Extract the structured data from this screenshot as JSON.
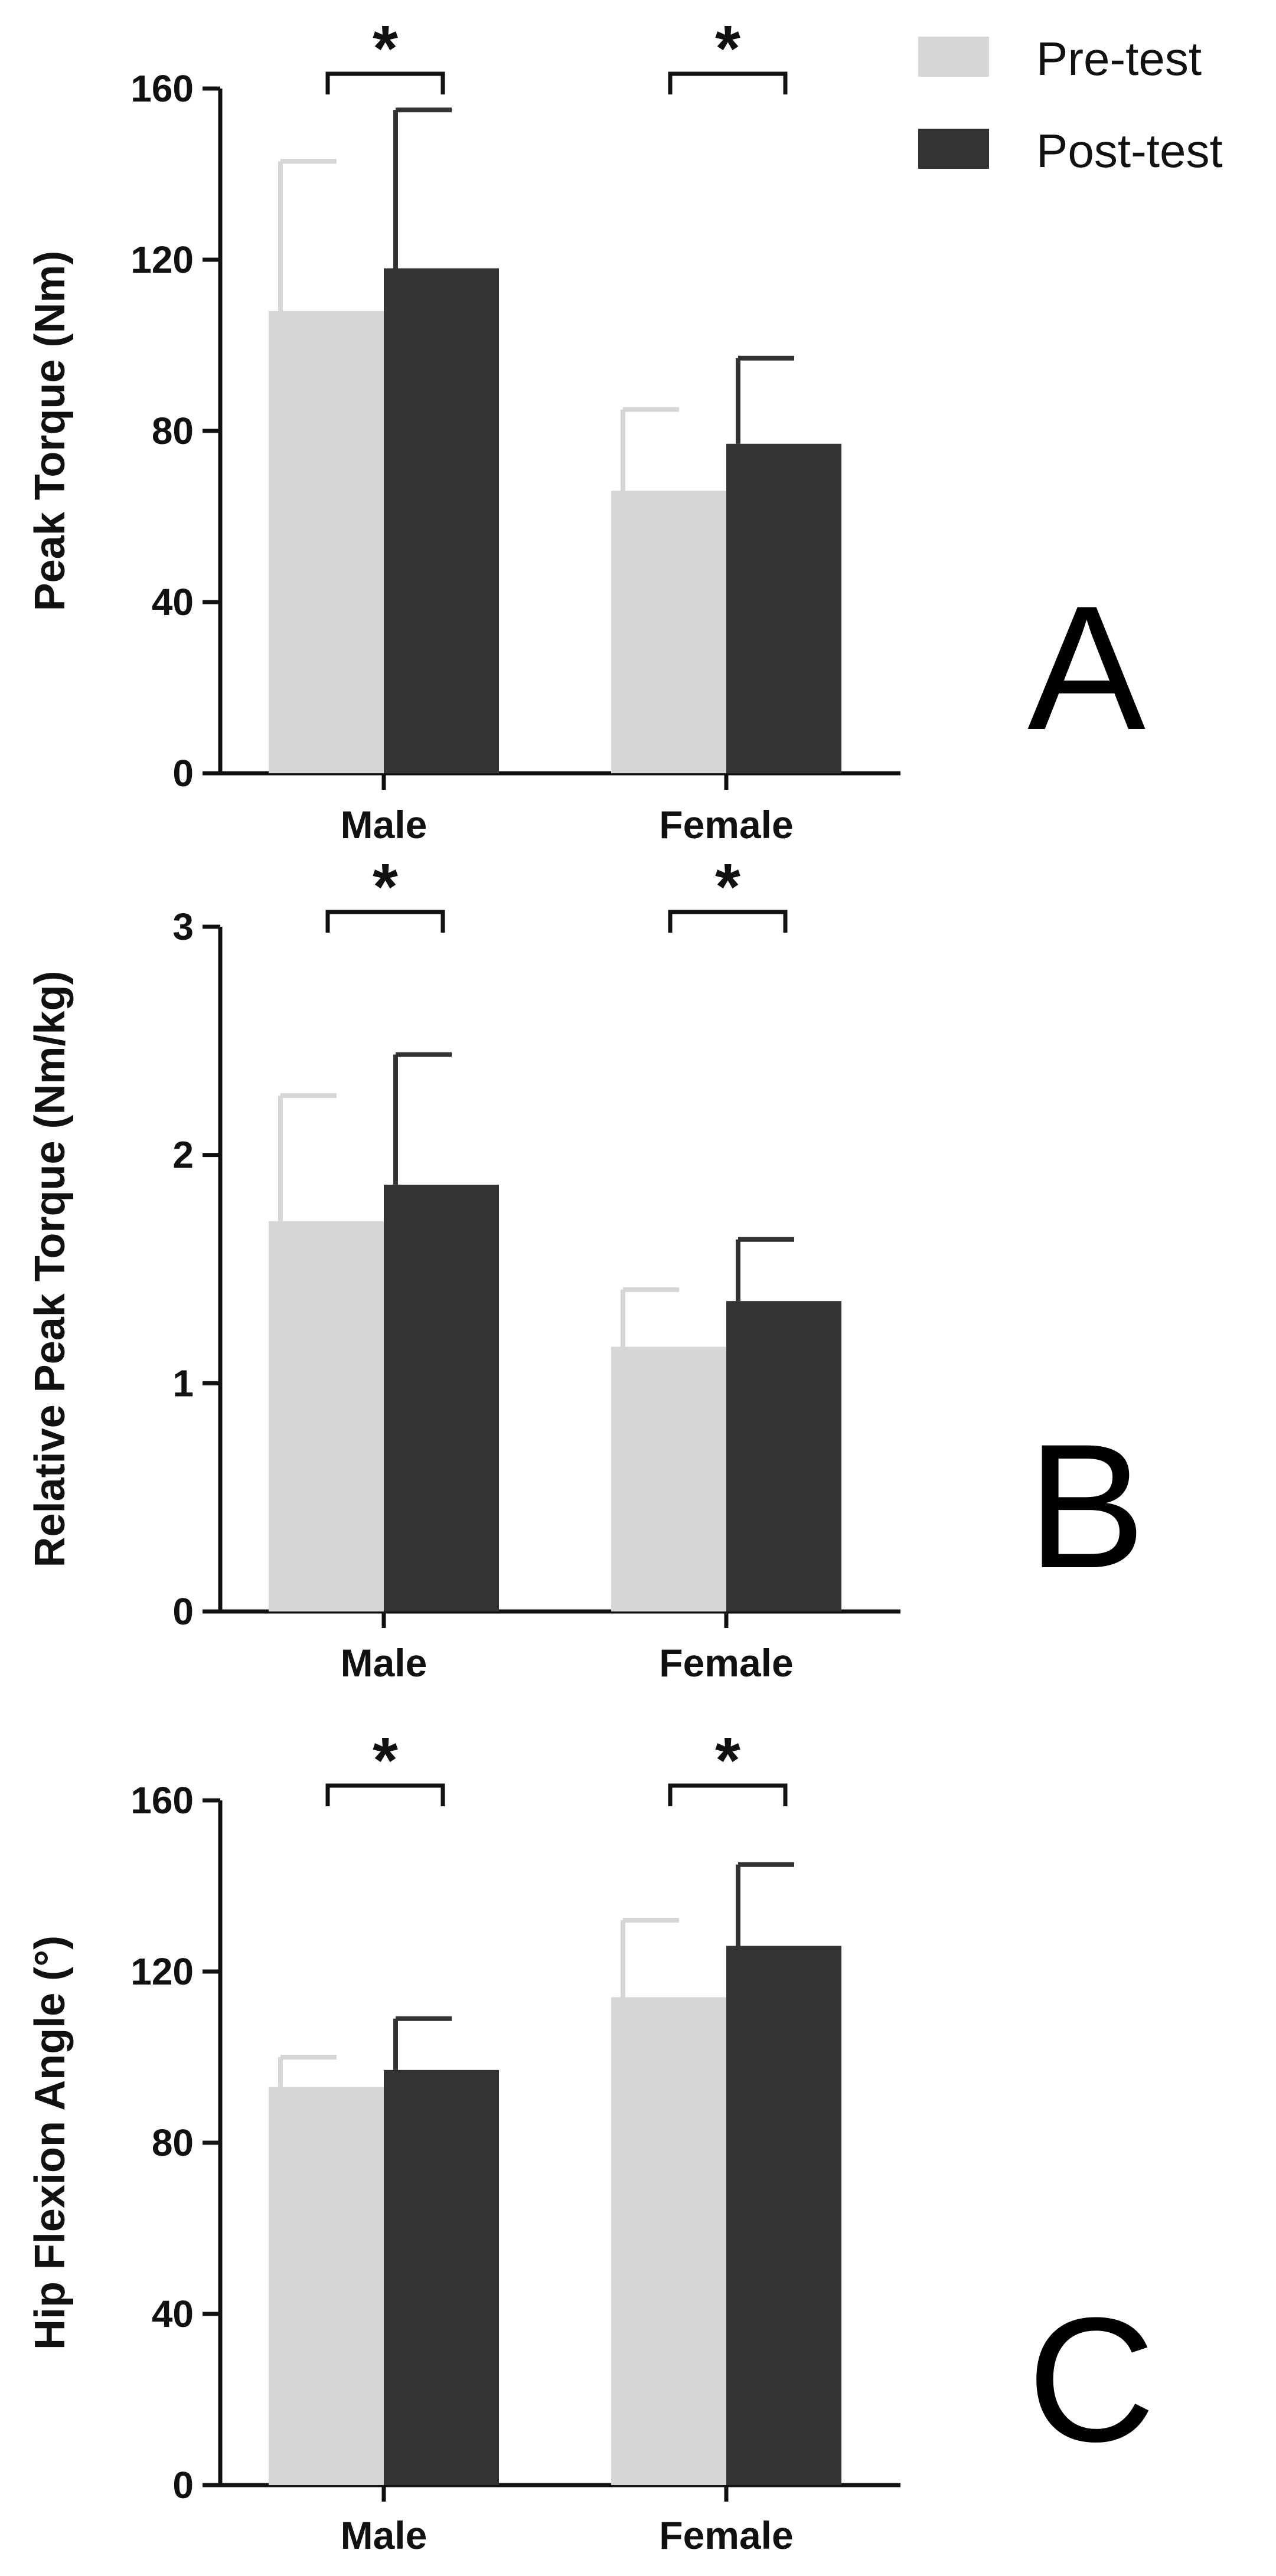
{
  "colors": {
    "pre": "#d6d6d6",
    "post": "#333333",
    "axis": "#111111"
  },
  "legend": {
    "position": "top-right",
    "items": [
      {
        "label": "Pre-test",
        "color": "#d6d6d6"
      },
      {
        "label": "Post-test",
        "color": "#333333"
      }
    ]
  },
  "chart_data": [
    {
      "type": "bar",
      "panel": "A",
      "categories": [
        "Male",
        "Female"
      ],
      "ylabel": "Peak Torque (Nm)",
      "ylim": [
        0,
        160
      ],
      "yticks": [
        0,
        40,
        80,
        120,
        160
      ],
      "series": [
        {
          "name": "Pre-test",
          "values": [
            108,
            66
          ],
          "errors": [
            35,
            19
          ]
        },
        {
          "name": "Post-test",
          "values": [
            118,
            77
          ],
          "errors": [
            37,
            20
          ]
        }
      ],
      "significance": [
        {
          "category": "Male",
          "label": "*"
        },
        {
          "category": "Female",
          "label": "*"
        }
      ]
    },
    {
      "type": "bar",
      "panel": "B",
      "categories": [
        "Male",
        "Female"
      ],
      "ylabel": "Relative Peak Torque (Nm/kg)",
      "ylim": [
        0,
        3
      ],
      "yticks": [
        0,
        1,
        2,
        3
      ],
      "series": [
        {
          "name": "Pre-test",
          "values": [
            1.71,
            1.16
          ],
          "errors": [
            0.55,
            0.25
          ]
        },
        {
          "name": "Post-test",
          "values": [
            1.87,
            1.36
          ],
          "errors": [
            0.57,
            0.27
          ]
        }
      ],
      "significance": [
        {
          "category": "Male",
          "label": "*"
        },
        {
          "category": "Female",
          "label": "*"
        }
      ]
    },
    {
      "type": "bar",
      "panel": "C",
      "categories": [
        "Male",
        "Female"
      ],
      "ylabel": "Hip Flexion Angle (°)",
      "ylim": [
        0,
        160
      ],
      "yticks": [
        0,
        40,
        80,
        120,
        160
      ],
      "series": [
        {
          "name": "Pre-test",
          "values": [
            93,
            114
          ],
          "errors": [
            7,
            18
          ]
        },
        {
          "name": "Post-test",
          "values": [
            97,
            126
          ],
          "errors": [
            12,
            19
          ]
        }
      ],
      "significance": [
        {
          "category": "Male",
          "label": "*"
        },
        {
          "category": "Female",
          "label": "*"
        }
      ]
    }
  ]
}
